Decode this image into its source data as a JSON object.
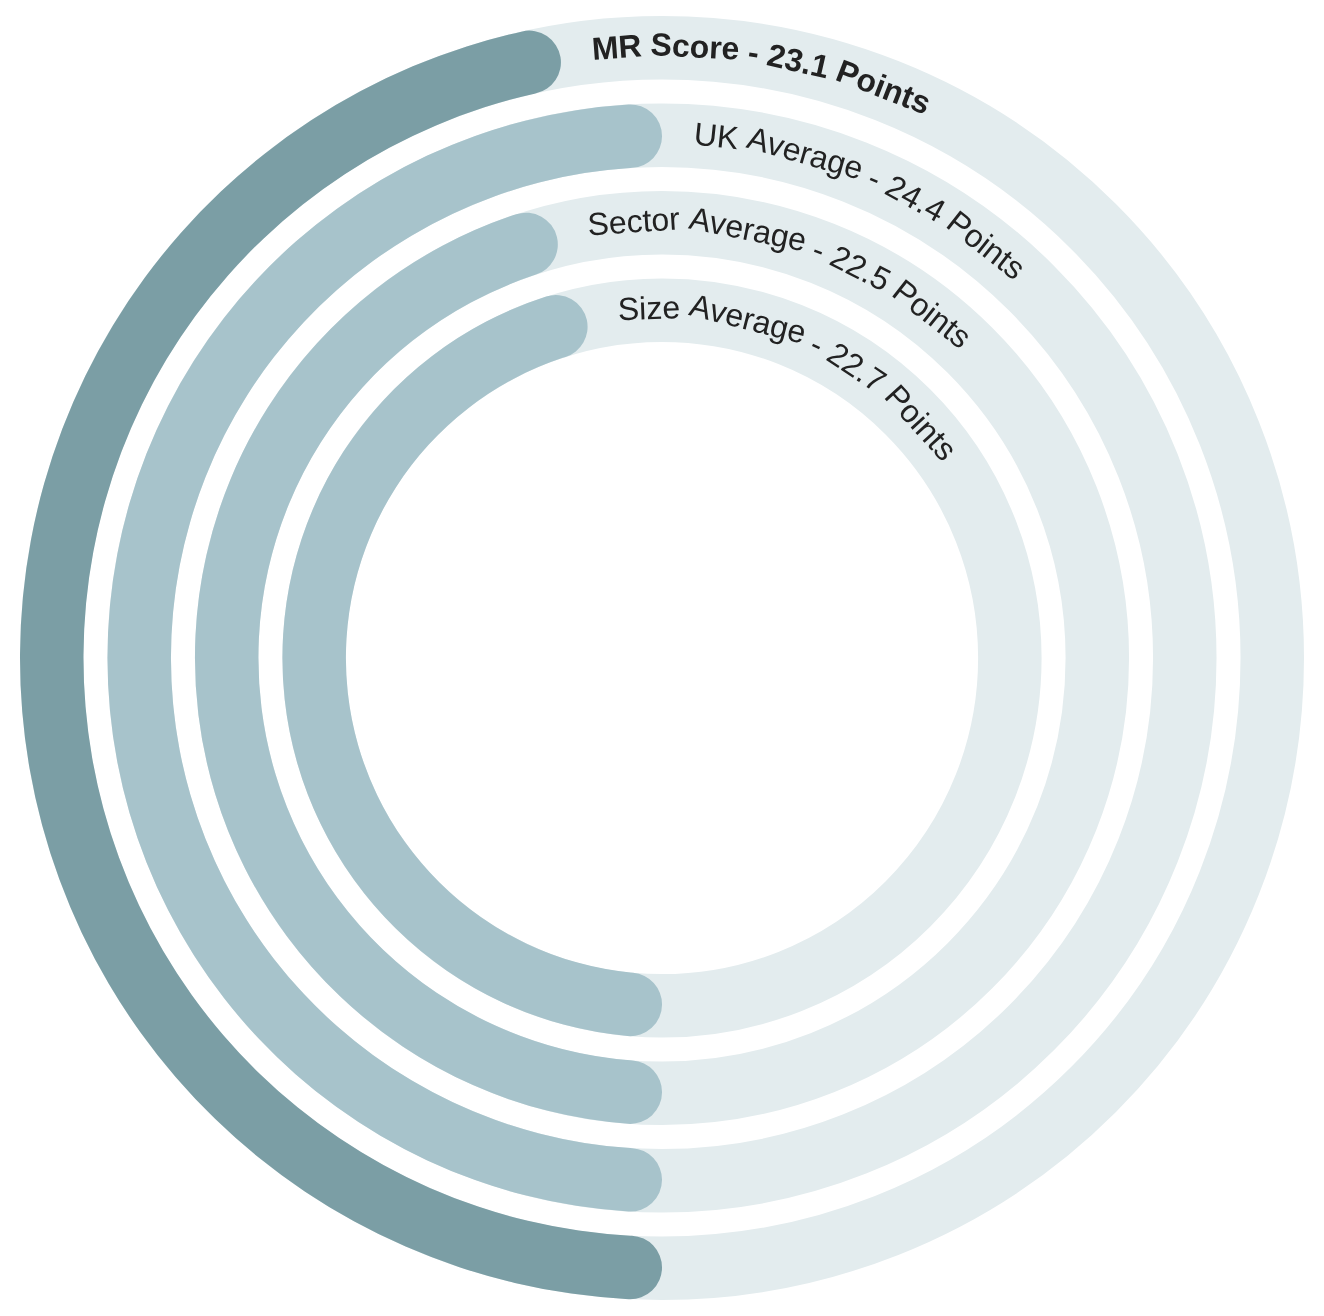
{
  "chart_data": {
    "type": "other",
    "categories": [
      "MR Score -",
      "UK Average -",
      "Sector Average -",
      "Size Average -"
    ],
    "values": [
      23.1,
      24.4,
      22.5,
      22.7
    ],
    "value_labels": [
      "23.1 Points",
      "24.4 Points",
      "22.5 Points",
      "22.7 Points"
    ],
    "colors": [
      "#7b9ea5",
      "#a7c3cb",
      "#a7c3cb",
      "#a7c3cb"
    ]
  }
}
